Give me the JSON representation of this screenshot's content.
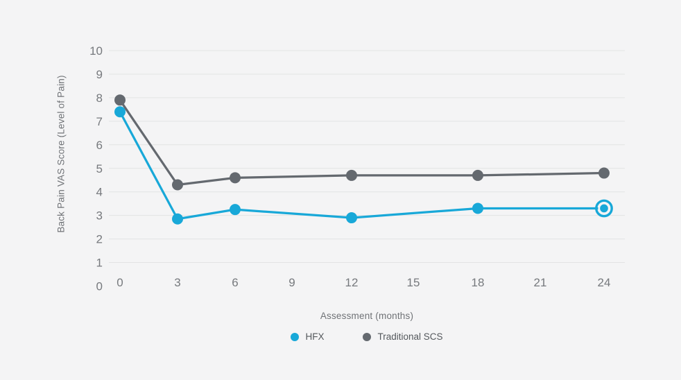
{
  "chart_data": {
    "type": "line",
    "title": "",
    "xlabel": "Assessment (months)",
    "ylabel": "Back Pain VAS Score (Level of Pain)",
    "xlim": [
      0,
      24
    ],
    "ylim": [
      0,
      10
    ],
    "xticks": [
      0,
      3,
      6,
      9,
      12,
      15,
      18,
      21,
      24
    ],
    "yticks": [
      0,
      1,
      2,
      3,
      4,
      5,
      6,
      7,
      8,
      9,
      10
    ],
    "grid": "horizontal-only",
    "legend_position": "bottom-center",
    "x": [
      0,
      3,
      6,
      12,
      18,
      24
    ],
    "series": [
      {
        "name": "Traditional SCS",
        "color": "#64696f",
        "x": [
          0,
          3,
          6,
          12,
          18,
          24
        ],
        "values": [
          7.9,
          4.3,
          4.6,
          4.7,
          4.7,
          4.8
        ],
        "marker": "circle",
        "emphasized_point": null
      },
      {
        "name": "HFX",
        "color": "#18a8d8",
        "x": [
          0,
          3,
          6,
          12,
          18,
          24
        ],
        "values": [
          7.4,
          2.85,
          3.25,
          2.9,
          3.3,
          3.3
        ],
        "marker": "circle",
        "emphasized_point": 24
      }
    ]
  },
  "legend": {
    "order": [
      1,
      0
    ]
  },
  "colors": {
    "background": "#f4f4f5",
    "gridline": "#e2e3e4",
    "tick_label": "#76797d",
    "axis_title": "#6f7276",
    "legend_text": "#54585c"
  }
}
